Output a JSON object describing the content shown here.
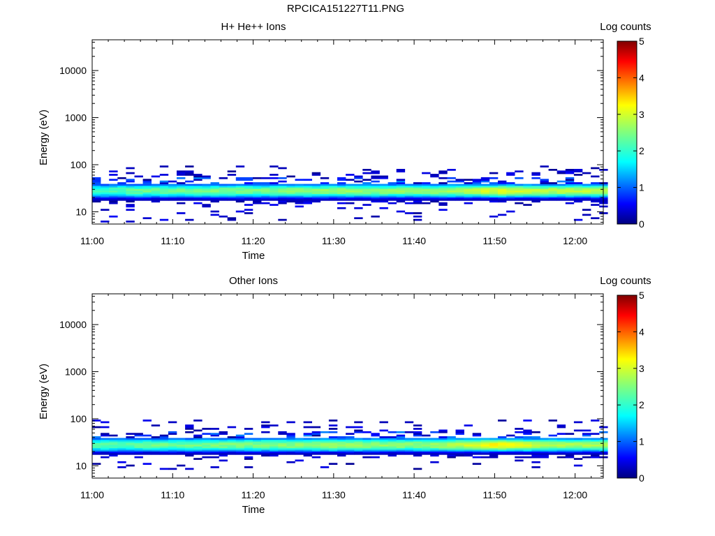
{
  "figure_title": "RPCICA151227T11.PNG",
  "chart_data": [
    {
      "type": "heatmap",
      "title": "H+ He++ Ions",
      "xlabel": "Time",
      "ylabel": "Energy (eV)",
      "x_tick_labels": [
        "11:00",
        "11:10",
        "11:20",
        "11:30",
        "11:40",
        "11:50",
        "12:00"
      ],
      "x_tick_minutes": [
        0,
        10,
        20,
        30,
        40,
        50,
        60
      ],
      "xlim_minutes": [
        0,
        63.5
      ],
      "y_scale": "log",
      "y_tick_labels": [
        "10",
        "100",
        "1000",
        "10000"
      ],
      "y_tick_values": [
        10,
        100,
        1000,
        10000
      ],
      "ylim": [
        5.5,
        45000
      ],
      "colorbar": {
        "label": "Log counts",
        "range": [
          0,
          5
        ],
        "ticks": [
          "0",
          "1",
          "2",
          "3",
          "4",
          "5"
        ]
      },
      "core_band": {
        "energy_range_eV": [
          18,
          40
        ],
        "peak_energy_eV": [
          25,
          28,
          30,
          32
        ],
        "peak_log_counts_by_time": [
          [
            0,
            2.2
          ],
          [
            5,
            2.4
          ],
          [
            10,
            2.4
          ],
          [
            15,
            2.5
          ],
          [
            20,
            2.5
          ],
          [
            25,
            2.6
          ],
          [
            30,
            2.6
          ],
          [
            35,
            2.6
          ],
          [
            40,
            2.6
          ],
          [
            45,
            2.7
          ],
          [
            50,
            3.0
          ],
          [
            55,
            2.8
          ],
          [
            60,
            2.8
          ],
          [
            63,
            2.8
          ]
        ]
      },
      "sparse_low_count_pixels_log_counts": 0.2,
      "sparse_energy_ranges_eV": [
        [
          6,
          18
        ],
        [
          40,
          95
        ]
      ]
    },
    {
      "type": "heatmap",
      "title": "Other Ions",
      "xlabel": "Time",
      "ylabel": "Energy (eV)",
      "x_tick_labels": [
        "11:00",
        "11:10",
        "11:20",
        "11:30",
        "11:40",
        "11:50",
        "12:00"
      ],
      "x_tick_minutes": [
        0,
        10,
        20,
        30,
        40,
        50,
        60
      ],
      "xlim_minutes": [
        0,
        63.5
      ],
      "y_scale": "log",
      "y_tick_labels": [
        "10",
        "100",
        "1000",
        "10000"
      ],
      "y_tick_values": [
        10,
        100,
        1000,
        10000
      ],
      "ylim": [
        5.5,
        45000
      ],
      "colorbar": {
        "label": "Log counts",
        "range": [
          0,
          5
        ],
        "ticks": [
          "0",
          "1",
          "2",
          "3",
          "4",
          "5"
        ]
      },
      "core_band": {
        "energy_range_eV": [
          18,
          40
        ],
        "peak_energy_eV": [
          25,
          28,
          30,
          32
        ],
        "peak_log_counts_by_time": [
          [
            0,
            2.3
          ],
          [
            5,
            2.4
          ],
          [
            10,
            2.4
          ],
          [
            15,
            2.5
          ],
          [
            20,
            2.5
          ],
          [
            25,
            2.6
          ],
          [
            30,
            2.7
          ],
          [
            35,
            2.6
          ],
          [
            40,
            2.6
          ],
          [
            45,
            2.8
          ],
          [
            50,
            3.2
          ],
          [
            55,
            2.8
          ],
          [
            60,
            2.7
          ],
          [
            63,
            2.7
          ]
        ]
      },
      "sparse_low_count_pixels_log_counts": 0.2,
      "sparse_energy_ranges_eV": [
        [
          8,
          18
        ],
        [
          40,
          95
        ]
      ]
    }
  ]
}
